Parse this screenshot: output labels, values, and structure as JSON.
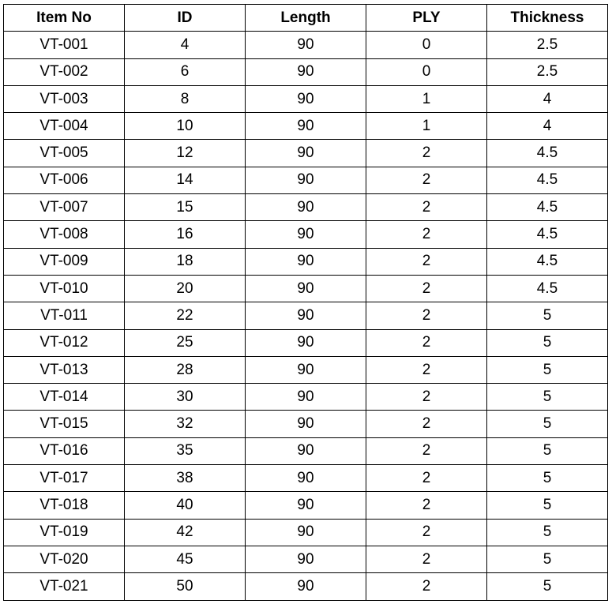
{
  "table": {
    "headers": [
      "Item No",
      "ID",
      "Length",
      "PLY",
      "Thickness"
    ],
    "rows": [
      [
        "VT-001",
        "4",
        "90",
        "0",
        "2.5"
      ],
      [
        "VT-002",
        "6",
        "90",
        "0",
        "2.5"
      ],
      [
        "VT-003",
        "8",
        "90",
        "1",
        "4"
      ],
      [
        "VT-004",
        "10",
        "90",
        "1",
        "4"
      ],
      [
        "VT-005",
        "12",
        "90",
        "2",
        "4.5"
      ],
      [
        "VT-006",
        "14",
        "90",
        "2",
        "4.5"
      ],
      [
        "VT-007",
        "15",
        "90",
        "2",
        "4.5"
      ],
      [
        "VT-008",
        "16",
        "90",
        "2",
        "4.5"
      ],
      [
        "VT-009",
        "18",
        "90",
        "2",
        "4.5"
      ],
      [
        "VT-010",
        "20",
        "90",
        "2",
        "4.5"
      ],
      [
        "VT-011",
        "22",
        "90",
        "2",
        "5"
      ],
      [
        "VT-012",
        "25",
        "90",
        "2",
        "5"
      ],
      [
        "VT-013",
        "28",
        "90",
        "2",
        "5"
      ],
      [
        "VT-014",
        "30",
        "90",
        "2",
        "5"
      ],
      [
        "VT-015",
        "32",
        "90",
        "2",
        "5"
      ],
      [
        "VT-016",
        "35",
        "90",
        "2",
        "5"
      ],
      [
        "VT-017",
        "38",
        "90",
        "2",
        "5"
      ],
      [
        "VT-018",
        "40",
        "90",
        "2",
        "5"
      ],
      [
        "VT-019",
        "42",
        "90",
        "2",
        "5"
      ],
      [
        "VT-020",
        "45",
        "90",
        "2",
        "5"
      ],
      [
        "VT-021",
        "50",
        "90",
        "2",
        "5"
      ]
    ]
  }
}
